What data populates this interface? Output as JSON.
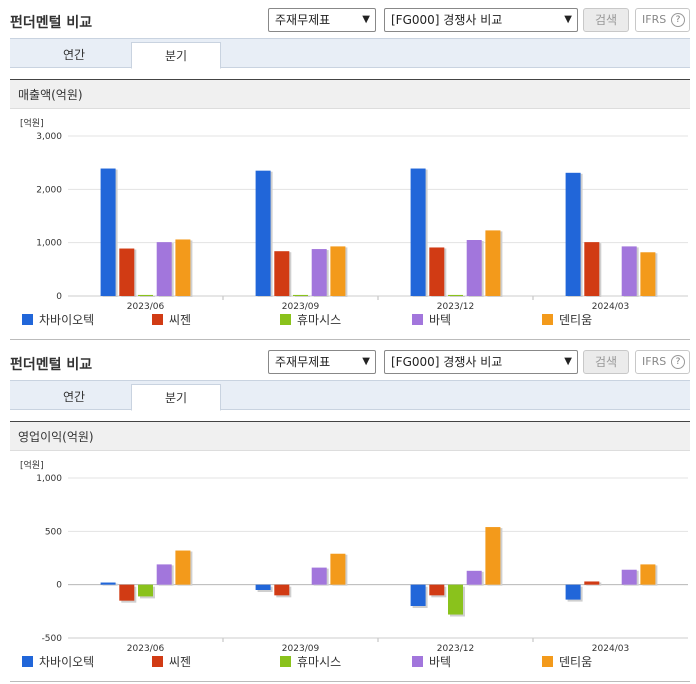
{
  "colors": [
    "#2166d9",
    "#d13b14",
    "#8ac21c",
    "#a276dc",
    "#f39a1b"
  ],
  "panels": [
    {
      "header": {
        "title": "펀더멘털 비교",
        "select1": "주재무제표",
        "select2": "[FG000] 경쟁사 비교",
        "search_label": "검색",
        "ifrs_label": "IFRS",
        "ifrs_help": "?"
      },
      "tabs": [
        {
          "label": "연간"
        },
        {
          "label": "분기"
        }
      ],
      "active_tab": 1,
      "chart_title": "매출액(억원)",
      "chart_data": {
        "type": "bar",
        "title": "매출액(억원)",
        "unit_label": "[억원]",
        "categories": [
          "2023/06",
          "2023/09",
          "2023/12",
          "2024/03"
        ],
        "ylim": [
          0,
          3000
        ],
        "yticks": [
          0,
          1000,
          2000,
          3000
        ],
        "ytick_labels": [
          "0",
          "1,000",
          "2,000",
          "3,000"
        ],
        "grid": true,
        "legend_position": "bottom",
        "series": [
          {
            "name": "차바이오텍",
            "values": [
              2390,
              2350,
              2390,
              2310
            ]
          },
          {
            "name": "씨젠",
            "values": [
              890,
              840,
              910,
              1010
            ]
          },
          {
            "name": "휴마시스",
            "values": [
              20,
              20,
              20,
              0
            ]
          },
          {
            "name": "바텍",
            "values": [
              1010,
              880,
              1050,
              930
            ]
          },
          {
            "name": "덴티움",
            "values": [
              1060,
              930,
              1230,
              820
            ]
          }
        ]
      }
    },
    {
      "header": {
        "title": "펀더멘털 비교",
        "select1": "주재무제표",
        "select2": "[FG000] 경쟁사 비교",
        "search_label": "검색",
        "ifrs_label": "IFRS",
        "ifrs_help": "?"
      },
      "tabs": [
        {
          "label": "연간"
        },
        {
          "label": "분기"
        }
      ],
      "active_tab": 1,
      "chart_title": "영업이익(억원)",
      "chart_data": {
        "type": "bar",
        "title": "영업이익(억원)",
        "unit_label": "[억원]",
        "categories": [
          "2023/06",
          "2023/09",
          "2023/12",
          "2024/03"
        ],
        "ylim": [
          -500,
          1000
        ],
        "yticks": [
          -500,
          0,
          500,
          1000
        ],
        "ytick_labels": [
          "-500",
          "0",
          "500",
          "1,000"
        ],
        "grid": true,
        "legend_position": "bottom",
        "series": [
          {
            "name": "차바이오텍",
            "values": [
              20,
              -50,
              -200,
              -140
            ]
          },
          {
            "name": "씨젠",
            "values": [
              -150,
              -100,
              -100,
              30
            ]
          },
          {
            "name": "휴마시스",
            "values": [
              -110,
              0,
              -280,
              0
            ]
          },
          {
            "name": "바텍",
            "values": [
              190,
              160,
              130,
              140
            ]
          },
          {
            "name": "덴티움",
            "values": [
              320,
              290,
              540,
              190
            ]
          }
        ]
      }
    }
  ]
}
